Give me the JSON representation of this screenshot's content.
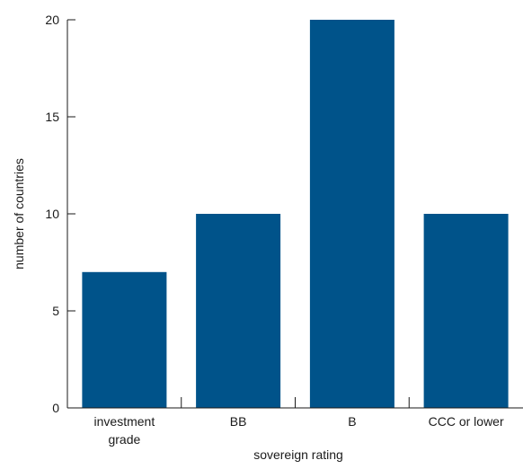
{
  "chart_data": {
    "type": "bar",
    "categories": [
      [
        "investment",
        "grade"
      ],
      [
        "BB"
      ],
      [
        "B"
      ],
      [
        "CCC or lower"
      ]
    ],
    "values": [
      7,
      10,
      20,
      10
    ],
    "xlabel": "sovereign rating",
    "ylabel": "number of countries",
    "ylim": [
      0,
      20
    ],
    "yticks": [
      0,
      5,
      10,
      15,
      20
    ],
    "bar_color": "#00538a",
    "grid": false
  }
}
